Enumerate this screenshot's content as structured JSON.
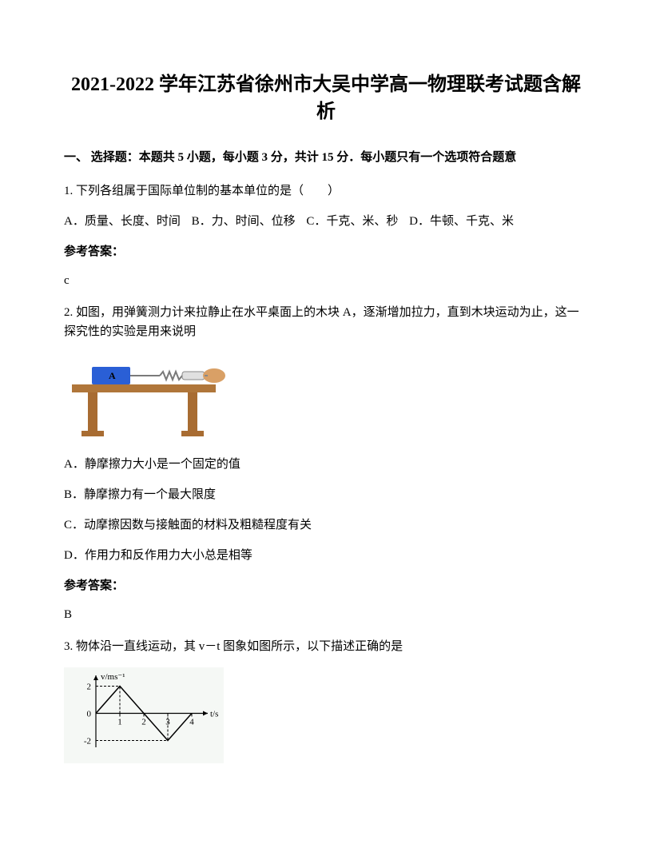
{
  "title": "2021-2022 学年江苏省徐州市大吴中学高一物理联考试题含解析",
  "section1": "一、 选择题：本题共 5 小题，每小题 3 分，共计 15 分．每小题只有一个选项符合题意",
  "q1": {
    "stem": "1. 下列各组属于国际单位制的基本单位的是（　　）",
    "optA": "A．质量、长度、时间",
    "optB": "B．力、时间、位移",
    "optC": "C．千克、米、秒",
    "optD": "D．牛顿、千克、米",
    "answerLabel": "参考答案：",
    "answer": "c"
  },
  "q2": {
    "stem": "2. 如图，用弹簧测力计来拉静止在水平桌面上的木块 A，逐渐增加拉力，直到木块运动为止，这一探究性的实验是用来说明",
    "optA": "A．静摩擦力大小是一个固定的值",
    "optB": "B．静摩擦力有一个最大限度",
    "optC": "C．动摩擦因数与接触面的材料及粗糙程度有关",
    "optD": "D．作用力和反作用力大小总是相等",
    "answerLabel": "参考答案：",
    "answer": "B",
    "figure": {
      "tableTop": "#b0763a",
      "tableLeg": "#a86c32",
      "blockColor": "#2a5fd6",
      "blockLabel": "A",
      "springColor": "#7a7a7a",
      "handColor": "#d9a066"
    }
  },
  "q3": {
    "stem": "3. 物体沿一直线运动，其 v－t 图象如图所示，以下描述正确的是",
    "chart": {
      "type": "line",
      "xlabel": "t/s",
      "ylabel": "v/ms⁻¹",
      "xlim": [
        0,
        4.5
      ],
      "ylim": [
        -2.5,
        2.5
      ],
      "xticks": [
        1,
        2,
        3,
        4
      ],
      "yticks": [
        -2,
        0,
        2
      ],
      "points": [
        [
          0,
          0
        ],
        [
          1,
          2
        ],
        [
          2,
          0
        ],
        [
          3,
          -2
        ],
        [
          4,
          0
        ]
      ],
      "line_color": "#000000",
      "axis_color": "#000000",
      "bg_color": "#f5f8f5",
      "fontsize": 11
    }
  }
}
